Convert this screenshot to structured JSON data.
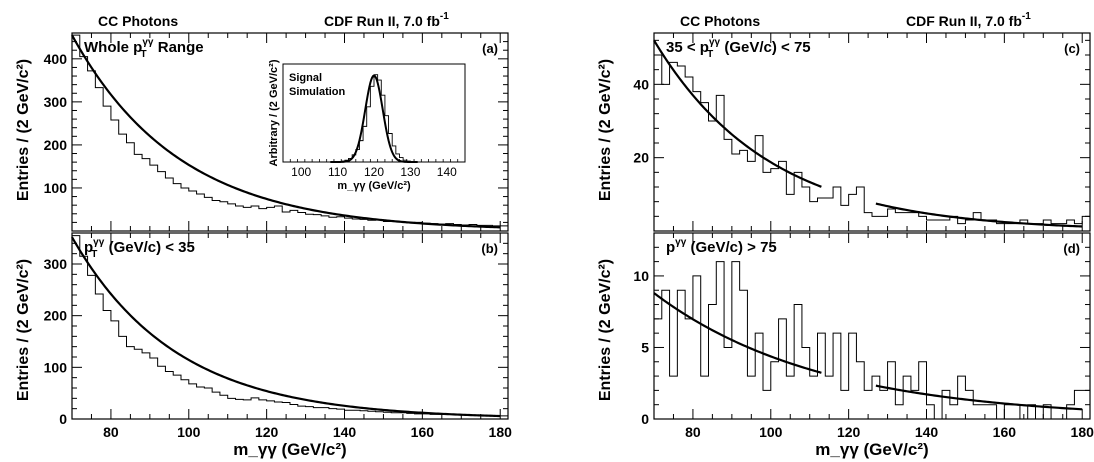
{
  "header": {
    "left_text": "CC Photons",
    "right_text": "CDF Run II, 7.0 fb",
    "right_sup": "-1"
  },
  "axis": {
    "ylabel": "Entries / (2 GeV/c²)",
    "xlabel": "m_γγ (GeV/c²)"
  },
  "chart_data": [
    {
      "id": "a",
      "type": "line",
      "panel_label": "(a)",
      "title": "Whole p_T^γγ Range",
      "xlim": [
        70,
        182
      ],
      "ylim": [
        0,
        460
      ],
      "yticks": [
        100,
        200,
        300,
        400
      ],
      "xticks": [
        80,
        100,
        120,
        140,
        160,
        180
      ],
      "x": [
        70,
        72,
        74,
        76,
        78,
        80,
        82,
        84,
        86,
        88,
        90,
        92,
        94,
        96,
        98,
        100,
        102,
        104,
        106,
        108,
        110,
        112,
        114,
        116,
        118,
        120,
        122,
        124,
        126,
        128,
        130,
        132,
        134,
        136,
        138,
        140,
        142,
        144,
        146,
        148,
        150,
        152,
        154,
        156,
        158,
        160,
        162,
        164,
        166,
        168,
        170,
        172,
        174,
        176,
        178,
        180
      ],
      "values": [
        455,
        405,
        372,
        333,
        290,
        258,
        225,
        205,
        178,
        168,
        153,
        138,
        123,
        110,
        100,
        93,
        86,
        78,
        71,
        68,
        63,
        58,
        55,
        58,
        52,
        55,
        58,
        44,
        48,
        43,
        39,
        38,
        35,
        32,
        33,
        30,
        28,
        27,
        25,
        26,
        22,
        22,
        21,
        19,
        20,
        18,
        17,
        16,
        17,
        15,
        14,
        15,
        13,
        13,
        12,
        12
      ],
      "fit": {
        "name": "fit",
        "norm": 455,
        "slope": 0.0362,
        "x0": 70
      }
    },
    {
      "id": "a-inset",
      "type": "line",
      "title": "Signal Simulation",
      "xlabel": "m_γγ (GeV/c²)",
      "ylabel": "Arbitrary / (2 GeV/c²)",
      "xlim": [
        95,
        145
      ],
      "ylim": [
        0,
        1.1
      ],
      "xticks": [
        100,
        110,
        120,
        130,
        140
      ],
      "x": [
        111,
        112,
        113,
        114,
        115,
        116,
        117,
        118,
        119,
        120,
        121,
        122,
        123,
        124,
        125,
        126,
        127,
        128,
        129,
        130
      ],
      "values": [
        0.01,
        0.02,
        0.04,
        0.08,
        0.14,
        0.24,
        0.4,
        0.62,
        0.85,
        0.98,
        0.92,
        0.75,
        0.52,
        0.32,
        0.18,
        0.09,
        0.05,
        0.02,
        0.01,
        0.0
      ],
      "fit": {
        "name": "gaussian",
        "mean": 120,
        "sigma": 2.4,
        "amp": 0.97
      }
    },
    {
      "id": "b",
      "type": "line",
      "panel_label": "(b)",
      "title": "p_T^γγ (GeV/c) < 35",
      "xlim": [
        70,
        182
      ],
      "ylim": [
        0,
        360
      ],
      "yticks": [
        0,
        100,
        200,
        300
      ],
      "xticks": [
        80,
        100,
        120,
        140,
        160,
        180
      ],
      "xlabel": "m_γγ (GeV/c²)",
      "x": [
        70,
        72,
        74,
        76,
        78,
        80,
        82,
        84,
        86,
        88,
        90,
        92,
        94,
        96,
        98,
        100,
        102,
        104,
        106,
        108,
        110,
        112,
        114,
        116,
        118,
        120,
        122,
        124,
        126,
        128,
        130,
        132,
        134,
        136,
        138,
        140,
        142,
        144,
        146,
        148,
        150,
        152,
        154,
        156,
        158,
        160,
        162,
        164,
        166,
        168,
        170,
        172,
        174,
        176,
        178,
        180
      ],
      "values": [
        355,
        315,
        278,
        242,
        210,
        190,
        160,
        140,
        135,
        128,
        118,
        102,
        92,
        85,
        76,
        68,
        62,
        60,
        52,
        46,
        40,
        38,
        37,
        41,
        37,
        35,
        33,
        32,
        28,
        25,
        24,
        22,
        22,
        20,
        19,
        17,
        17,
        16,
        15,
        14,
        13,
        12,
        12,
        11,
        10,
        10,
        9,
        9,
        9,
        8,
        8,
        7,
        7,
        7,
        6,
        6
      ],
      "fit": {
        "name": "fit",
        "norm": 352,
        "slope": 0.0375,
        "x0": 70
      }
    },
    {
      "id": "c",
      "type": "line",
      "panel_label": "(c)",
      "title": "35 < p_T^γγ (GeV/c) < 75",
      "xlim": [
        70,
        182
      ],
      "ylim": [
        0,
        54
      ],
      "yticks": [
        20,
        40
      ],
      "xticks": [
        80,
        100,
        120,
        140,
        160,
        180
      ],
      "x": [
        70,
        72,
        74,
        76,
        78,
        80,
        82,
        84,
        86,
        88,
        90,
        92,
        94,
        96,
        98,
        100,
        102,
        104,
        106,
        108,
        110,
        112,
        114,
        116,
        118,
        120,
        122,
        124,
        126,
        128,
        130,
        132,
        134,
        136,
        138,
        140,
        142,
        144,
        146,
        148,
        150,
        152,
        154,
        156,
        158,
        160,
        162,
        164,
        166,
        168,
        170,
        172,
        174,
        176,
        178,
        180
      ],
      "values": [
        48,
        40,
        46,
        45,
        42,
        38,
        35,
        30,
        37,
        25,
        21,
        22,
        19,
        26,
        16,
        17,
        19,
        10,
        16,
        12,
        8,
        9,
        9,
        12,
        7,
        10,
        12,
        5,
        4,
        4,
        6,
        5,
        5,
        5,
        4,
        3,
        3,
        3,
        4,
        2,
        3,
        5,
        3,
        3,
        2,
        2,
        2,
        3,
        2,
        2,
        3,
        2,
        2,
        3,
        2,
        4
      ],
      "fit": {
        "name": "fit",
        "norm": 52,
        "slope": 0.034,
        "x0": 70,
        "gap": [
          113,
          127
        ]
      }
    },
    {
      "id": "d",
      "type": "line",
      "panel_label": "(d)",
      "title": "p^γγ (GeV/c) > 75",
      "xlim": [
        70,
        182
      ],
      "ylim": [
        0,
        13
      ],
      "yticks": [
        0,
        5,
        10
      ],
      "xticks": [
        80,
        100,
        120,
        140,
        160,
        180
      ],
      "xlabel": "m_γγ (GeV/c²)",
      "x": [
        70,
        72,
        74,
        76,
        78,
        80,
        82,
        84,
        86,
        88,
        90,
        92,
        94,
        96,
        98,
        100,
        102,
        104,
        106,
        108,
        110,
        112,
        114,
        116,
        118,
        120,
        122,
        124,
        126,
        128,
        130,
        132,
        134,
        136,
        138,
        140,
        142,
        144,
        146,
        148,
        150,
        152,
        154,
        156,
        158,
        160,
        162,
        164,
        166,
        168,
        170,
        172,
        174,
        176,
        178,
        180
      ],
      "values": [
        7,
        9,
        3,
        9,
        7,
        10,
        3,
        8,
        11,
        5,
        11,
        9,
        3,
        6,
        2,
        4,
        7,
        3,
        8,
        5,
        3,
        6,
        3,
        6,
        2,
        6,
        4,
        2,
        3,
        2,
        4,
        1,
        3,
        2,
        4,
        1,
        0,
        2,
        1,
        3,
        2,
        1,
        1,
        1,
        0,
        1,
        1,
        0,
        1,
        0,
        1,
        0,
        0,
        1,
        2,
        2
      ],
      "fit": {
        "name": "fit",
        "norm": 8.8,
        "slope": 0.0233,
        "x0": 70,
        "gap": [
          113,
          127
        ]
      }
    }
  ]
}
